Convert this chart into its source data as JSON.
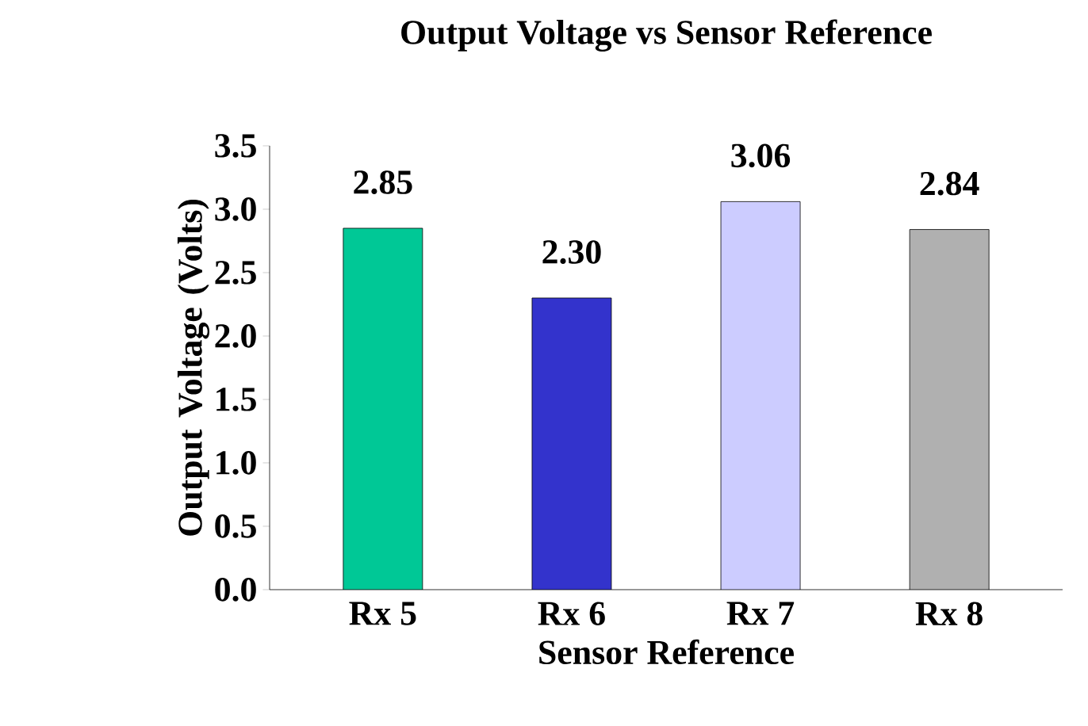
{
  "chart_data": {
    "type": "bar",
    "title": "Output Voltage vs Sensor Reference",
    "xlabel": "Sensor Reference",
    "ylabel": "Output Voltage (Volts)",
    "categories": [
      "Rx 5",
      "Rx 6",
      "Rx 7",
      "Rx 8"
    ],
    "values": [
      2.85,
      2.3,
      3.06,
      2.84
    ],
    "value_labels": [
      "2.85",
      "2.30",
      "3.06",
      "2.84"
    ],
    "colors": [
      "#00c896",
      "#3333cc",
      "#ccccff",
      "#b0b0b0"
    ],
    "ylim": [
      0,
      3.5
    ],
    "yticks": [
      {
        "value": 0,
        "label": "0.0"
      },
      {
        "value": 0.5,
        "label": "0.5"
      },
      {
        "value": 1,
        "label": "1.0"
      },
      {
        "value": 1.5,
        "label": "1.5"
      },
      {
        "value": 2,
        "label": "2.0"
      },
      {
        "value": 2.5,
        "label": "2.5"
      },
      {
        "value": 3,
        "label": "3.0"
      },
      {
        "value": 3.5,
        "label": "3.5"
      }
    ],
    "grid": false
  }
}
